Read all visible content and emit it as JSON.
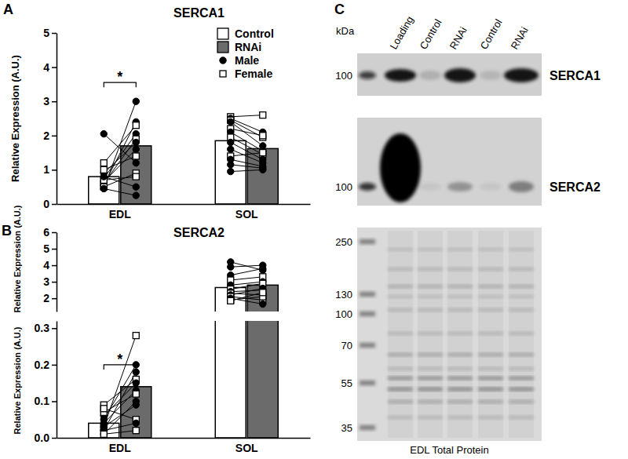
{
  "chart_data": [
    {
      "type": "bar",
      "panel": "A",
      "title": "SERCA1",
      "y_label": "Relative Expression (A.U.)",
      "categories": [
        "EDL",
        "SOL"
      ],
      "series": [
        {
          "name": "Control",
          "color": "#ffffff",
          "values": [
            0.8,
            1.85
          ]
        },
        {
          "name": "RNAi",
          "color": "#6b6b6b",
          "values": [
            1.7,
            1.62
          ]
        }
      ],
      "markers": [
        {
          "name": "Male",
          "marker": "circle"
        },
        {
          "name": "Female",
          "marker": "square"
        }
      ],
      "legend": "upper right",
      "ylim": [
        0,
        5
      ],
      "yticks": [
        0,
        1,
        2,
        3,
        4,
        5
      ],
      "points": [
        [
          {
            "marker": "circle",
            "values": [
              0.45,
              3.0
            ]
          },
          {
            "marker": "circle",
            "values": [
              0.55,
              2.4
            ]
          },
          {
            "marker": "square",
            "values": [
              1.2,
              2.3
            ]
          },
          {
            "marker": "circle",
            "values": [
              0.75,
              2.05
            ]
          },
          {
            "marker": "square",
            "values": [
              0.6,
              1.9
            ]
          },
          {
            "marker": "circle",
            "values": [
              0.9,
              1.8
            ]
          },
          {
            "marker": "circle",
            "values": [
              0.65,
              1.6
            ]
          },
          {
            "marker": "square",
            "values": [
              1.0,
              1.4
            ]
          },
          {
            "marker": "circle",
            "values": [
              2.05,
              1.2
            ]
          },
          {
            "marker": "square",
            "values": [
              0.5,
              0.9
            ]
          },
          {
            "marker": "square",
            "values": [
              0.7,
              0.8
            ]
          },
          {
            "marker": "circle",
            "values": [
              0.8,
              0.5
            ]
          },
          {
            "marker": "circle",
            "values": [
              0.45,
              0.25
            ]
          }
        ],
        [
          {
            "marker": "square",
            "values": [
              2.55,
              2.6
            ]
          },
          {
            "marker": "circle",
            "values": [
              2.5,
              2.1
            ]
          },
          {
            "marker": "square",
            "values": [
              2.45,
              1.95
            ]
          },
          {
            "marker": "circle",
            "values": [
              2.4,
              1.7
            ]
          },
          {
            "marker": "square",
            "values": [
              2.2,
              2.0
            ]
          },
          {
            "marker": "circle",
            "values": [
              2.1,
              1.55
            ]
          },
          {
            "marker": "square",
            "values": [
              1.95,
              1.45
            ]
          },
          {
            "marker": "circle",
            "values": [
              1.8,
              1.3
            ]
          },
          {
            "marker": "circle",
            "values": [
              1.6,
              1.2
            ]
          },
          {
            "marker": "square",
            "values": [
              1.4,
              1.5
            ]
          },
          {
            "marker": "circle",
            "values": [
              1.3,
              1.1
            ]
          },
          {
            "marker": "circle",
            "values": [
              1.15,
              1.05
            ]
          },
          {
            "marker": "circle",
            "values": [
              0.95,
              1.0
            ]
          }
        ]
      ],
      "annotations": [
        {
          "text": "*",
          "category": "EDL",
          "y": 3.55
        }
      ]
    },
    {
      "type": "bar",
      "panel": "B",
      "title": "SERCA2",
      "categories": [
        "EDL",
        "SOL"
      ],
      "series": [
        {
          "name": "Control",
          "color": "#ffffff",
          "values": [
            0.04,
            2.65
          ]
        },
        {
          "name": "RNAi",
          "color": "#6b6b6b",
          "values": [
            0.14,
            2.8
          ]
        }
      ],
      "segments": [
        {
          "y_label": "Relative Expression (A.U.)",
          "ylim": [
            0,
            0.32
          ],
          "yticks": [
            {
              "value": 0,
              "label": "0.0"
            },
            0.1,
            0.2,
            0.3
          ]
        },
        {
          "y_label": "Relative Expression (A.U.)",
          "ylim": [
            1.2,
            6
          ],
          "yticks": [
            2,
            3,
            4,
            5,
            6
          ]
        }
      ],
      "points": [
        [
          {
            "marker": "square",
            "values": [
              0.03,
              0.28
            ]
          },
          {
            "marker": "circle",
            "values": [
              0.05,
              0.2
            ]
          },
          {
            "marker": "circle",
            "values": [
              0.02,
              0.18
            ]
          },
          {
            "marker": "square",
            "values": [
              0.09,
              0.16
            ]
          },
          {
            "marker": "circle",
            "values": [
              0.06,
              0.15
            ]
          },
          {
            "marker": "circle",
            "values": [
              0.04,
              0.13
            ]
          },
          {
            "marker": "square",
            "values": [
              0.07,
              0.12
            ]
          },
          {
            "marker": "circle",
            "values": [
              0.01,
              0.1
            ]
          },
          {
            "marker": "circle",
            "values": [
              0.03,
              0.09
            ]
          },
          {
            "marker": "square",
            "values": [
              0.08,
              0.05
            ]
          },
          {
            "marker": "circle",
            "values": [
              0.02,
              0.04
            ]
          },
          {
            "marker": "square",
            "values": [
              0.01,
              0.02
            ]
          }
        ],
        [
          {
            "marker": "circle",
            "values": [
              4.2,
              3.7
            ]
          },
          {
            "marker": "circle",
            "values": [
              3.9,
              4.0
            ]
          },
          {
            "marker": "circle",
            "values": [
              3.4,
              3.8
            ]
          },
          {
            "marker": "square",
            "values": [
              3.1,
              3.3
            ]
          },
          {
            "marker": "circle",
            "values": [
              2.8,
              3.0
            ]
          },
          {
            "marker": "square",
            "values": [
              2.55,
              2.9
            ]
          },
          {
            "marker": "circle",
            "values": [
              2.4,
              2.5
            ]
          },
          {
            "marker": "square",
            "values": [
              2.3,
              2.2
            ]
          },
          {
            "marker": "circle",
            "values": [
              2.2,
              2.6
            ]
          },
          {
            "marker": "square",
            "values": [
              2.1,
              1.9
            ]
          },
          {
            "marker": "square",
            "values": [
              1.9,
              2.1
            ]
          },
          {
            "marker": "circle",
            "values": [
              2.0,
              1.65
            ]
          },
          {
            "marker": "square",
            "values": [
              1.85,
              2.35
            ]
          }
        ]
      ],
      "annotations": [
        {
          "text": "*",
          "category": "EDL",
          "y": 0.2
        }
      ]
    }
  ],
  "blot": {
    "panel": "C",
    "unit": "kDa",
    "lanes": [
      "Loading",
      "Control",
      "RNAi",
      "Control",
      "RNAi"
    ],
    "strips": [
      {
        "size": 100,
        "label": "SERCA1"
      },
      {
        "size": 100,
        "label": "SERCA2"
      }
    ],
    "ladder": [
      250,
      130,
      100,
      70,
      55,
      35
    ],
    "caption": "EDL Total Protein"
  }
}
